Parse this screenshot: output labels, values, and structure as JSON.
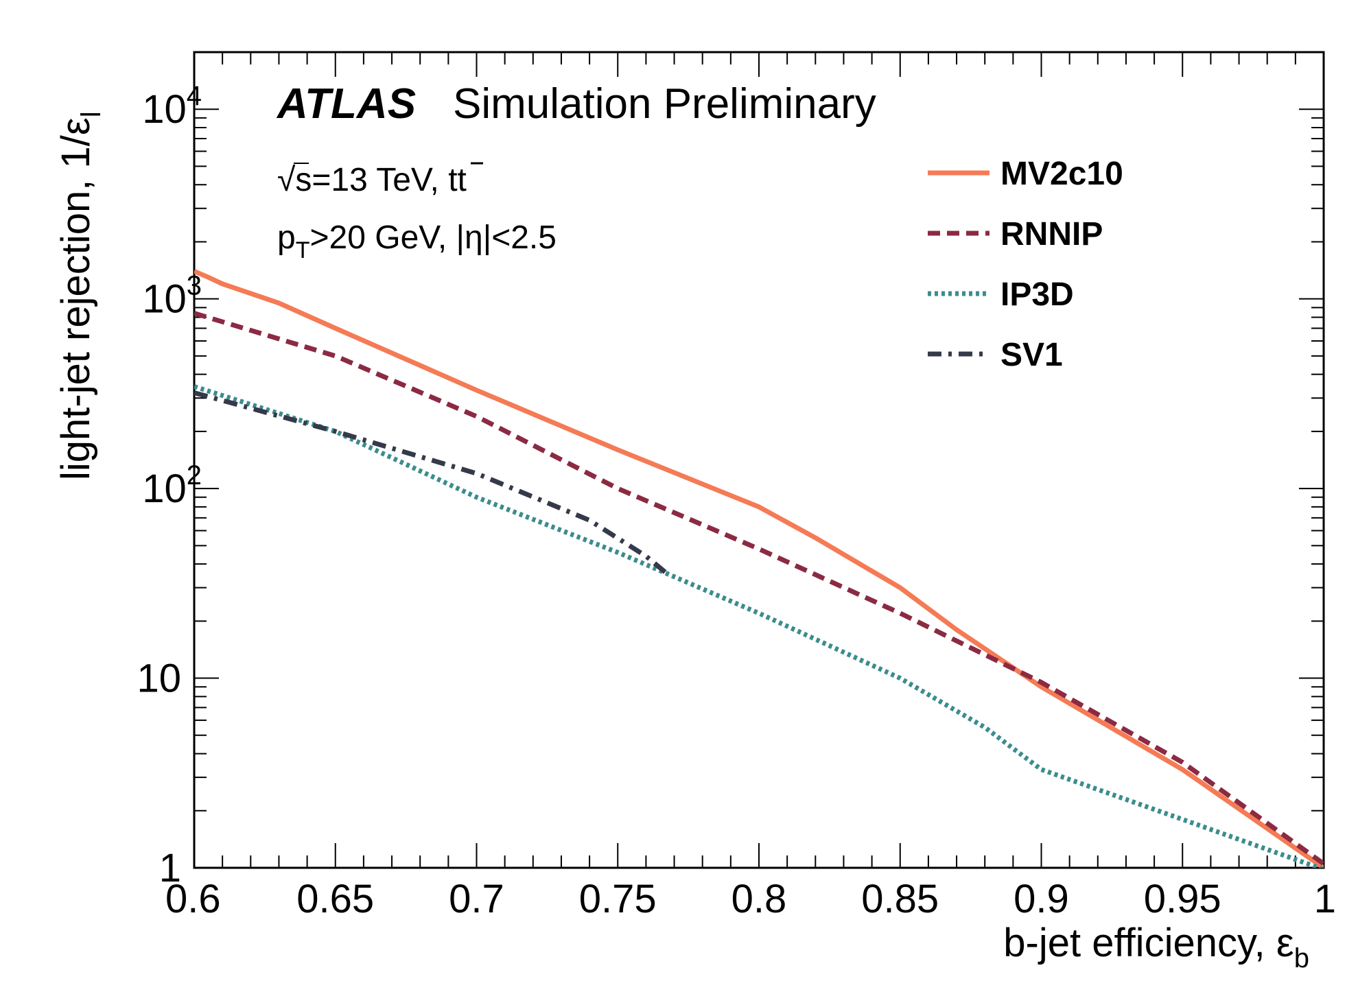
{
  "chart_data": {
    "type": "line",
    "title": "",
    "header": {
      "bold": "ATLAS",
      "rest": "Simulation Preliminary"
    },
    "annotations": {
      "energy": {
        "sqrt": "√",
        "text": "s=13 TeV, tt",
        "bar_char": "̄"
      },
      "cuts": {
        "p": "p",
        "sub": "T",
        "rest": ">20 GeV, |η|<2.5"
      }
    },
    "xlabel": {
      "text": "b-jet efficiency, ε",
      "sub": "b"
    },
    "ylabel": {
      "text": "light-jet rejection, 1/ε",
      "sub": "l"
    },
    "xlim": [
      0.6,
      1.0
    ],
    "ylim": [
      1,
      20000
    ],
    "yscale": "log",
    "x_ticks": [
      "0.6",
      "0.65",
      "0.7",
      "0.75",
      "0.8",
      "0.85",
      "0.9",
      "0.95",
      "1"
    ],
    "y_ticks": [
      {
        "value": 1,
        "base": "1",
        "exp": ""
      },
      {
        "value": 10,
        "base": "10",
        "exp": ""
      },
      {
        "value": 100,
        "base": "10",
        "exp": "2"
      },
      {
        "value": 1000,
        "base": "10",
        "exp": "3"
      },
      {
        "value": 10000,
        "base": "10",
        "exp": "4"
      }
    ],
    "legend_position": "top-right",
    "series": [
      {
        "name": "MV2c10",
        "color": "#f47b55",
        "style": "solid",
        "x": [
          0.6,
          0.605,
          0.61,
          0.63,
          0.65,
          0.7,
          0.75,
          0.8,
          0.82,
          0.85,
          0.87,
          0.9,
          0.95,
          1.0
        ],
        "y": [
          1400,
          1300,
          1200,
          950,
          700,
          330,
          160,
          80,
          55,
          30,
          18,
          9,
          3.3,
          1.0
        ]
      },
      {
        "name": "RNNIP",
        "color": "#8b2a42",
        "style": "dashed",
        "x": [
          0.6,
          0.65,
          0.7,
          0.75,
          0.8,
          0.85,
          0.9,
          0.95,
          1.0
        ],
        "y": [
          840,
          500,
          240,
          100,
          48,
          22,
          9.5,
          3.6,
          1.05
        ]
      },
      {
        "name": "IP3D",
        "color": "#3c8c8c",
        "style": "dotted",
        "x": [
          0.6,
          0.65,
          0.7,
          0.75,
          0.8,
          0.85,
          0.88,
          0.9,
          0.95,
          1.0
        ],
        "y": [
          345,
          200,
          90,
          46,
          22,
          10,
          5.5,
          3.3,
          1.8,
          0.98
        ]
      },
      {
        "name": "SV1",
        "color": "#353a4a",
        "style": "dashdot",
        "x": [
          0.6,
          0.65,
          0.7,
          0.74,
          0.76,
          0.768
        ],
        "y": [
          320,
          200,
          120,
          68,
          44,
          35
        ]
      }
    ]
  }
}
